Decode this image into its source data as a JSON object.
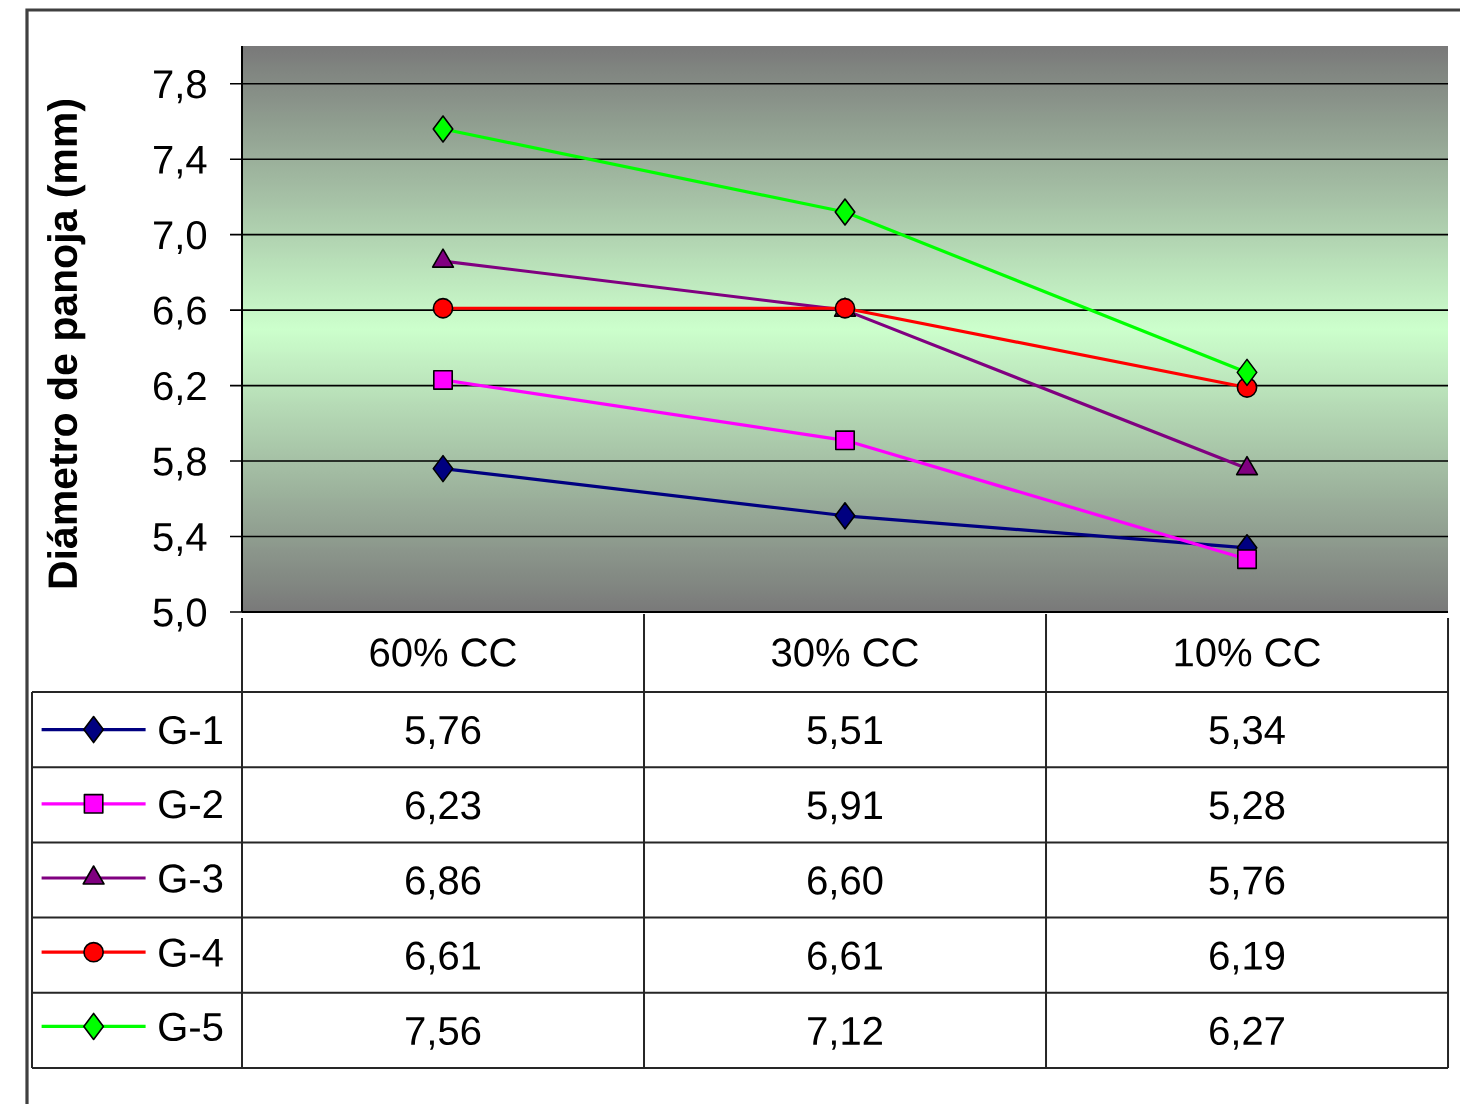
{
  "chart_data": {
    "type": "line",
    "ylabel": "Diámetro de panoja (mm)",
    "categories": [
      "60% CC",
      "30% CC",
      "10% CC"
    ],
    "series": [
      {
        "name": "G-1",
        "color": "#000080",
        "marker": "diamond",
        "values": [
          5.76,
          5.51,
          5.34
        ],
        "value_labels": [
          "5,76",
          "5,51",
          "5,34"
        ]
      },
      {
        "name": "G-2",
        "color": "#ff00ff",
        "marker": "square",
        "values": [
          6.23,
          5.91,
          5.28
        ],
        "value_labels": [
          "6,23",
          "5,91",
          "5,28"
        ]
      },
      {
        "name": "G-3",
        "color": "#800080",
        "marker": "triangle",
        "values": [
          6.86,
          6.6,
          5.76
        ],
        "value_labels": [
          "6,86",
          "6,60",
          "5,76"
        ]
      },
      {
        "name": "G-4",
        "color": "#ff0000",
        "marker": "circle",
        "values": [
          6.61,
          6.61,
          6.19
        ],
        "value_labels": [
          "6,61",
          "6,61",
          "6,19"
        ]
      },
      {
        "name": "G-5",
        "color": "#00ff00",
        "marker": "diamond",
        "values": [
          7.56,
          7.12,
          6.27
        ],
        "value_labels": [
          "7,56",
          "7,12",
          "6,27"
        ]
      }
    ],
    "ylim": [
      5.0,
      8.0
    ],
    "yticks": [
      {
        "value": 5.0,
        "label": "5,0"
      },
      {
        "value": 5.4,
        "label": "5,4"
      },
      {
        "value": 5.8,
        "label": "5,8"
      },
      {
        "value": 6.2,
        "label": "6,2"
      },
      {
        "value": 6.6,
        "label": "6,6"
      },
      {
        "value": 7.0,
        "label": "7,0"
      },
      {
        "value": 7.4,
        "label": "7,4"
      },
      {
        "value": 7.8,
        "label": "7,8"
      }
    ],
    "grid": "y",
    "legend": "bottom left",
    "line_style": "solid"
  }
}
